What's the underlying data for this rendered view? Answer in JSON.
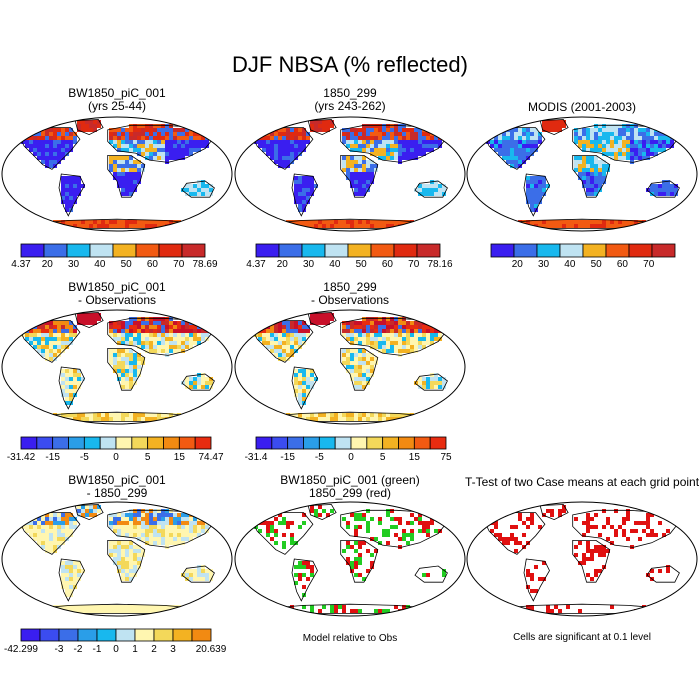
{
  "title": "DJF NBSA (% reflected)",
  "colors": {
    "land_outline": "#000000",
    "ocean": "#ffffff",
    "seq_colorbar": [
      "#3a1ef0",
      "#3b6ee8",
      "#18b8ee",
      "#bfe3f2",
      "#f3b222",
      "#f25a12",
      "#e02a10",
      "#c82a2a"
    ],
    "diff_colorbar": [
      "#3a1ef0",
      "#3b4cf0",
      "#3b6ee8",
      "#2a9ee8",
      "#18b8ee",
      "#bfe3f2",
      "#fff6b0",
      "#f3d85a",
      "#f3b222",
      "#f28a12",
      "#f25a12",
      "#e82c10",
      "#c8102a",
      "#c82a2a"
    ],
    "green_sig": "#22cc22",
    "red_sig": "#e01010"
  },
  "panels": [
    {
      "id": "bw1850",
      "title_lines": [
        "BW1850_piC_001",
        "(yrs 25-44)"
      ],
      "colorbar": {
        "kind": "seq",
        "labels": [
          "4.37",
          "20",
          "30",
          "40",
          "50",
          "60",
          "70",
          "78.69"
        ]
      }
    },
    {
      "id": "case1850",
      "title_lines": [
        "1850_299",
        "(yrs 243-262)"
      ],
      "colorbar": {
        "kind": "seq",
        "labels": [
          "4.37",
          "20",
          "30",
          "40",
          "50",
          "60",
          "70",
          "78.16"
        ]
      }
    },
    {
      "id": "modis",
      "title_lines": [
        "MODIS (2001-2003)"
      ],
      "colorbar": {
        "kind": "seq",
        "labels": [
          "",
          "20",
          "30",
          "40",
          "50",
          "60",
          "70",
          ""
        ]
      }
    },
    {
      "id": "bw_minus_obs",
      "title_lines": [
        "BW1850_piC_001",
        "- Observations"
      ],
      "colorbar": {
        "kind": "diff",
        "labels": [
          "-31.42",
          "",
          "-15",
          "",
          "-5",
          "",
          "0",
          "",
          "5",
          "",
          "15",
          "",
          "74.47"
        ]
      }
    },
    {
      "id": "c1850_minus_obs",
      "title_lines": [
        "1850_299",
        "- Observations"
      ],
      "colorbar": {
        "kind": "diff",
        "labels": [
          "-31.4",
          "",
          "-15",
          "",
          "-5",
          "",
          "0",
          "",
          "5",
          "",
          "15",
          "",
          "75"
        ]
      }
    },
    {
      "id": "bw_minus_1850",
      "title_lines": [
        "BW1850_piC_001",
        "- 1850_299"
      ],
      "colorbar": {
        "kind": "diff",
        "labels": [
          "-42.299",
          "",
          "-3",
          "-2",
          "-1",
          "0",
          "1",
          "2",
          "3",
          "",
          "20.639"
        ]
      }
    },
    {
      "id": "model_vs_obs",
      "title_lines": [
        "BW1850_piC_001 (green)",
        "1850_299 (red)"
      ],
      "note": "Model relative to Obs"
    },
    {
      "id": "ttest",
      "title_lines": [
        "T-Test of two Case means at each grid point"
      ],
      "note": "Cells are significant at 0.1 level"
    }
  ]
}
